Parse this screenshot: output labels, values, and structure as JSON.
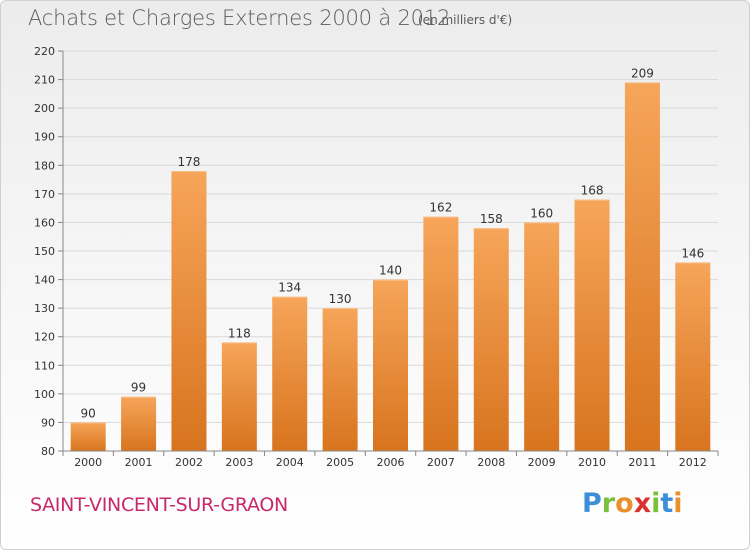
{
  "header": {
    "title": "Achats et Charges Externes 2000 à 2012",
    "subtitle": "(en milliers d'€)"
  },
  "footer": {
    "commune": "SAINT-VINCENT-SUR-GRAON",
    "logo_letters": [
      "P",
      "r",
      "o",
      "x",
      "i",
      "t",
      "i"
    ],
    "logo_colors": [
      "#3c8fd6",
      "#7bbf3a",
      "#e8902a",
      "#d6342c",
      "#7bbf3a",
      "#3c8fd6",
      "#e8902a"
    ]
  },
  "colors": {
    "bar_top": "#f6a55a",
    "bar_bottom": "#d8741e",
    "grid": "#d9d9d9",
    "axis_text": "#333333",
    "title": "#5a5a5a",
    "commune": "#c72a67"
  },
  "chart_data": {
    "type": "bar",
    "title": "Achats et Charges Externes 2000 à 2012",
    "subtitle": "(en milliers d'€)",
    "xlabel": "",
    "ylabel": "",
    "categories": [
      "2000",
      "2001",
      "2002",
      "2003",
      "2004",
      "2005",
      "2006",
      "2007",
      "2008",
      "2009",
      "2010",
      "2011",
      "2012"
    ],
    "values": [
      90,
      99,
      178,
      118,
      134,
      130,
      140,
      162,
      158,
      160,
      168,
      209,
      146
    ],
    "ylim": [
      80,
      220
    ],
    "yticks": [
      80,
      90,
      100,
      110,
      120,
      130,
      140,
      150,
      160,
      170,
      180,
      190,
      200,
      210,
      220
    ],
    "grid": true,
    "data_labels": true
  }
}
